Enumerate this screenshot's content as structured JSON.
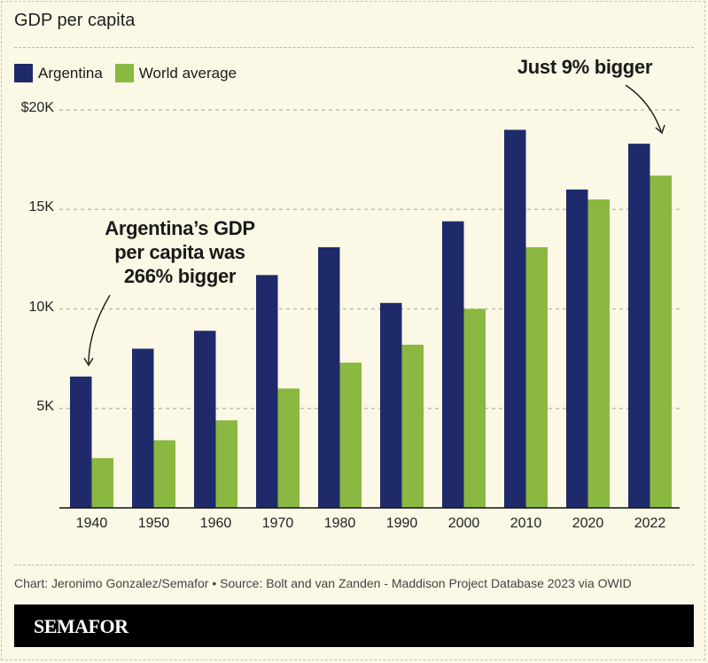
{
  "title": "GDP per capita",
  "legend": [
    {
      "label": "Argentina",
      "color": "#1f2a6b"
    },
    {
      "label": "World average",
      "color": "#8ab840"
    }
  ],
  "annotations": {
    "left": [
      "Argentina’s GDP",
      "per capita was",
      "266% bigger"
    ],
    "right": "Just 9% bigger"
  },
  "footer": {
    "source": "Chart: Jeronimo Gonzalez/Semafor • Source: Bolt and van Zanden - Maddison Project Database 2023 via OWID",
    "brand": "SEMAFOR"
  },
  "chart_data": {
    "type": "bar",
    "title": "GDP per capita",
    "xlabel": "",
    "ylabel": "",
    "categories": [
      "1940",
      "1950",
      "1960",
      "1970",
      "1980",
      "1990",
      "2000",
      "2010",
      "2020",
      "2022"
    ],
    "series": [
      {
        "name": "Argentina",
        "color": "#1f2a6b",
        "values": [
          6600,
          8000,
          8900,
          11700,
          13100,
          10300,
          14400,
          19000,
          16000,
          18300
        ]
      },
      {
        "name": "World average",
        "color": "#8ab840",
        "values": [
          2500,
          3400,
          4400,
          6000,
          7300,
          8200,
          10000,
          13100,
          15500,
          16700
        ]
      }
    ],
    "ylim": [
      0,
      20000
    ],
    "yticks": [
      5000,
      10000,
      15000,
      20000
    ],
    "ytick_labels": [
      "5K",
      "10K",
      "15K",
      "$20K"
    ],
    "grid": true,
    "legend_position": "top-left"
  }
}
